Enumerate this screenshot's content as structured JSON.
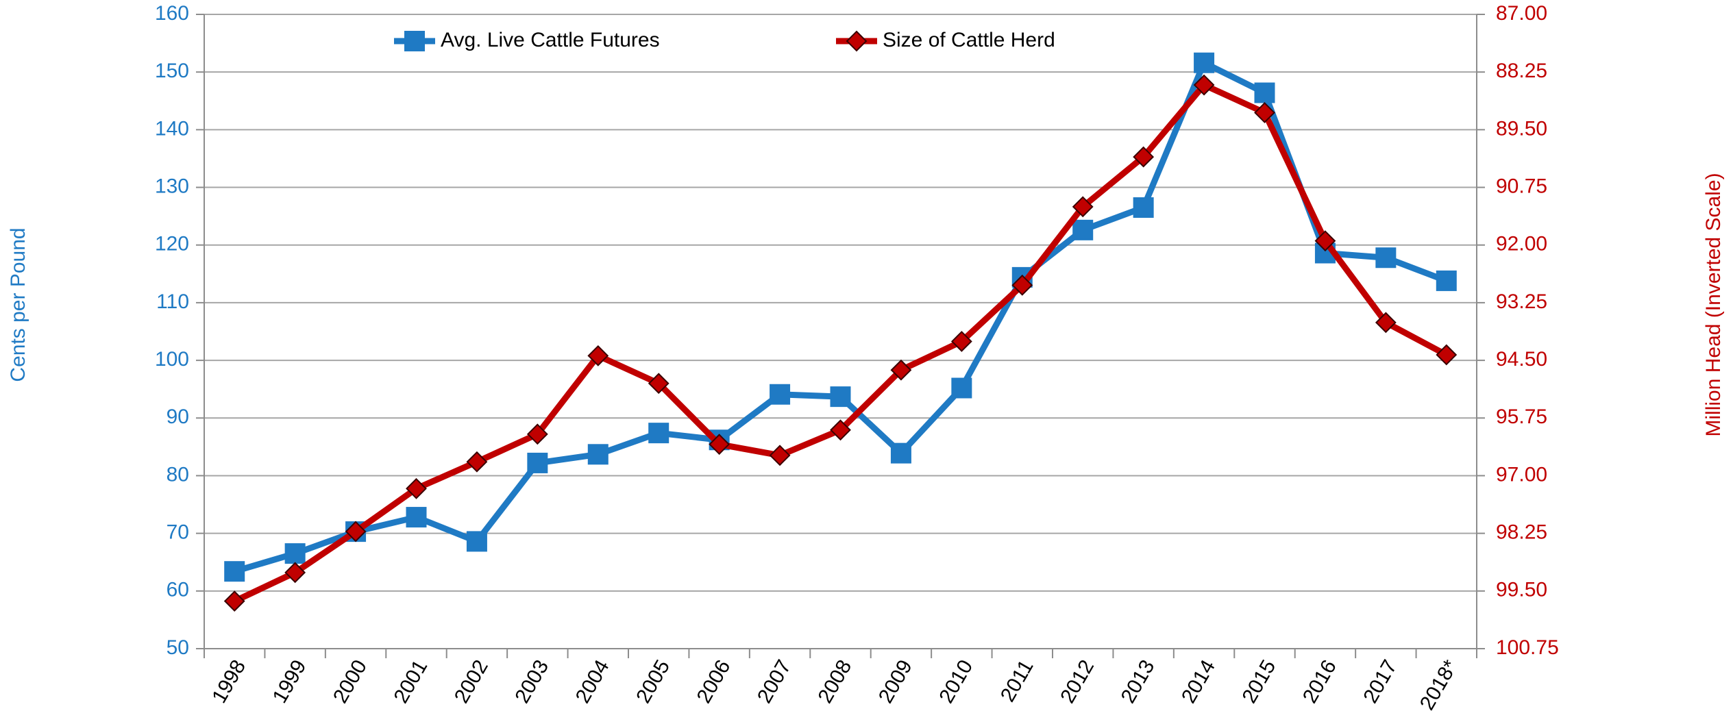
{
  "chart_data": {
    "type": "line",
    "categories": [
      "1998",
      "1999",
      "2000",
      "2001",
      "2002",
      "2003",
      "2004",
      "2005",
      "2006",
      "2007",
      "2008",
      "2009",
      "2010",
      "2011",
      "2012",
      "2013",
      "2014",
      "2015",
      "2016",
      "2017",
      "2018*"
    ],
    "series": [
      {
        "name": "Avg. Live Cattle Futures",
        "color": "#1f7ac4",
        "marker": "square",
        "values": [
          63.4,
          66.5,
          70.3,
          72.8,
          68.6,
          82.2,
          83.7,
          87.4,
          86.2,
          94.1,
          93.7,
          83.9,
          95.2,
          114.4,
          122.6,
          126.5,
          151.6,
          146.4,
          118.6,
          117.8,
          113.8
        ]
      },
      {
        "name": "Size of Cattle Herd",
        "color": "#c00000",
        "marker": "diamond",
        "axis": "y2",
        "values": [
          99.72,
          99.1,
          98.21,
          97.28,
          96.7,
          96.1,
          94.4,
          95.0,
          96.32,
          96.56,
          96.01,
          94.71,
          94.09,
          92.87,
          91.17,
          90.09,
          88.53,
          89.13,
          91.91,
          93.68,
          94.38
        ]
      }
    ],
    "ylabel": "Cents per Pound",
    "y2label": "Million Head (Inverted Scale)",
    "ylim": [
      50,
      160
    ],
    "yticks": [
      50,
      60,
      70,
      80,
      90,
      100,
      110,
      120,
      130,
      140,
      150,
      160
    ],
    "y2lim": [
      87,
      100.75
    ],
    "y2_inverted": true,
    "y2ticks": [
      {
        "value": 87,
        "label": "87.00"
      },
      88.25,
      {
        "value": 89.5,
        "label": "89.50"
      },
      90.75,
      {
        "value": 92,
        "label": "92.00"
      },
      93.25,
      {
        "value": 94.5,
        "label": "94.50"
      },
      95.75,
      {
        "value": 97,
        "label": "97.00"
      },
      98.25,
      {
        "value": 99.5,
        "label": "99.50"
      },
      100.75
    ],
    "grid": true,
    "legend": "top"
  }
}
